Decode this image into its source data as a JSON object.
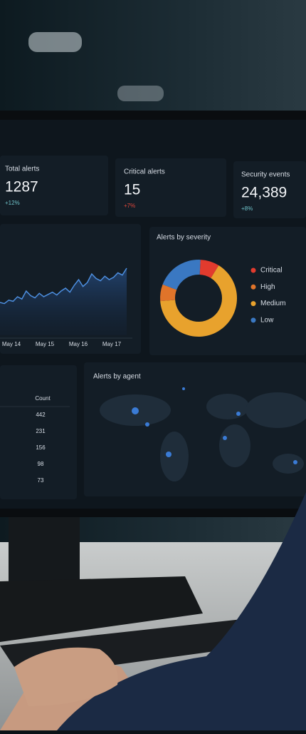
{
  "kpis": [
    {
      "label": "Total alerts",
      "value": "1287",
      "change": "+12%"
    },
    {
      "label": "Critical alerts",
      "value": "15",
      "change": "+7%"
    },
    {
      "label": "Security events",
      "value": "24,389",
      "change": "+8%"
    }
  ],
  "trend": {
    "x_labels": [
      "May 14",
      "May 15",
      "May 16",
      "May 17"
    ],
    "values": [
      20,
      18,
      24,
      22,
      30,
      26,
      40,
      32,
      28,
      36,
      30,
      34,
      38,
      33,
      40,
      45,
      38,
      50,
      60,
      48,
      55,
      70,
      62,
      58,
      66,
      60,
      64,
      72,
      68,
      80
    ]
  },
  "severity": {
    "title": "Alerts by severity",
    "series": [
      {
        "name": "Critical",
        "color": "#e23b2e",
        "value": 8
      },
      {
        "name": "Medium",
        "color": "#e8a22d",
        "value": 65
      },
      {
        "name": "High",
        "color": "#e0742a",
        "value": 7
      },
      {
        "name": "Low",
        "color": "#3a78c2",
        "value": 20
      }
    ]
  },
  "table": {
    "header": "Count",
    "rows": [
      "442",
      "231",
      "156",
      "98",
      "73"
    ]
  },
  "map": {
    "title": "Alerts by agent"
  }
}
